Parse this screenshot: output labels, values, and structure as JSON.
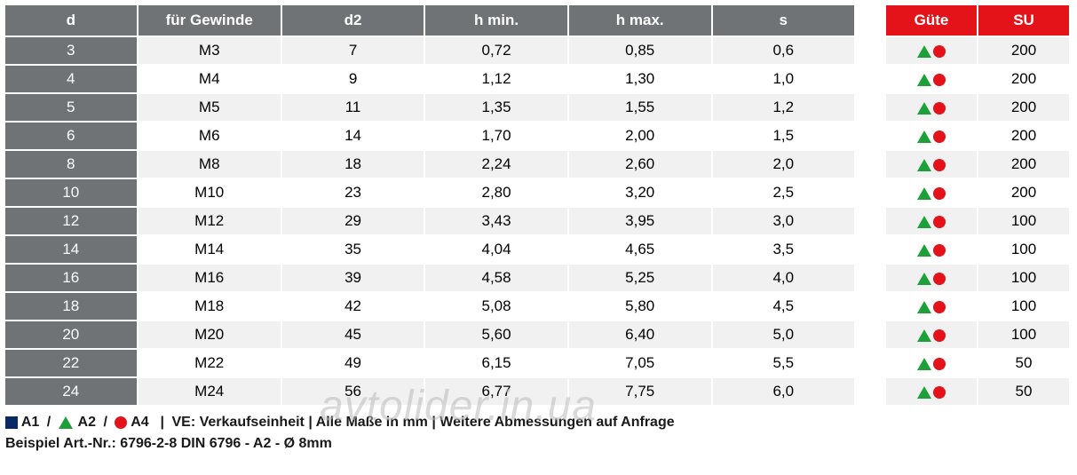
{
  "colors": {
    "header_main": "#6f7375",
    "header_side": "#e31319",
    "row_odd": "#f1f1f1",
    "row_even": "#ffffff",
    "d_col": "#6f7375",
    "legend_square": "#0a2a66",
    "legend_triangle": "#1da038",
    "legend_circle": "#e31319",
    "text_header": "#ffffff",
    "text_body": "#1a1a1a"
  },
  "main": {
    "columns": [
      "d",
      "für Gewinde",
      "d2",
      "h min.",
      "h max.",
      "s"
    ],
    "rows": [
      [
        "3",
        "M3",
        "7",
        "0,72",
        "0,85",
        "0,6"
      ],
      [
        "4",
        "M4",
        "9",
        "1,12",
        "1,30",
        "1,0"
      ],
      [
        "5",
        "M5",
        "11",
        "1,35",
        "1,55",
        "1,2"
      ],
      [
        "6",
        "M6",
        "14",
        "1,70",
        "2,00",
        "1,5"
      ],
      [
        "8",
        "M8",
        "18",
        "2,24",
        "2,60",
        "2,0"
      ],
      [
        "10",
        "M10",
        "23",
        "2,80",
        "3,20",
        "2,5"
      ],
      [
        "12",
        "M12",
        "29",
        "3,43",
        "3,95",
        "3,0"
      ],
      [
        "14",
        "M14",
        "35",
        "4,04",
        "4,65",
        "3,5"
      ],
      [
        "16",
        "M16",
        "39",
        "4,58",
        "5,25",
        "4,0"
      ],
      [
        "18",
        "M18",
        "42",
        "5,08",
        "5,80",
        "4,5"
      ],
      [
        "20",
        "M20",
        "45",
        "5,60",
        "6,40",
        "5,0"
      ],
      [
        "22",
        "M22",
        "49",
        "6,15",
        "7,05",
        "5,5"
      ],
      [
        "24",
        "M24",
        "56",
        "6,77",
        "7,75",
        "6,0"
      ]
    ]
  },
  "side": {
    "columns": [
      "Güte",
      "SU"
    ],
    "rows": [
      {
        "icons": [
          "triangle",
          "circle"
        ],
        "su": "200"
      },
      {
        "icons": [
          "triangle",
          "circle"
        ],
        "su": "200"
      },
      {
        "icons": [
          "triangle",
          "circle"
        ],
        "su": "200"
      },
      {
        "icons": [
          "triangle",
          "circle"
        ],
        "su": "200"
      },
      {
        "icons": [
          "triangle",
          "circle"
        ],
        "su": "200"
      },
      {
        "icons": [
          "triangle",
          "circle"
        ],
        "su": "200"
      },
      {
        "icons": [
          "triangle",
          "circle"
        ],
        "su": "100"
      },
      {
        "icons": [
          "triangle",
          "circle"
        ],
        "su": "100"
      },
      {
        "icons": [
          "triangle",
          "circle"
        ],
        "su": "100"
      },
      {
        "icons": [
          "triangle",
          "circle"
        ],
        "su": "100"
      },
      {
        "icons": [
          "triangle",
          "circle"
        ],
        "su": "100"
      },
      {
        "icons": [
          "triangle",
          "circle"
        ],
        "su": "50"
      },
      {
        "icons": [
          "triangle",
          "circle"
        ],
        "su": "50"
      }
    ]
  },
  "legend": {
    "a1": "A1",
    "a2": "A2",
    "a4": "A4",
    "note": "VE: Verkaufseinheit | Alle Maße in mm | Weitere Abmessungen auf Anfrage",
    "example": "Beispiel Art.-Nr.: 6796-2-8 DIN 6796 - A2 - Ø 8mm"
  },
  "watermark": "avtolider.in.ua"
}
